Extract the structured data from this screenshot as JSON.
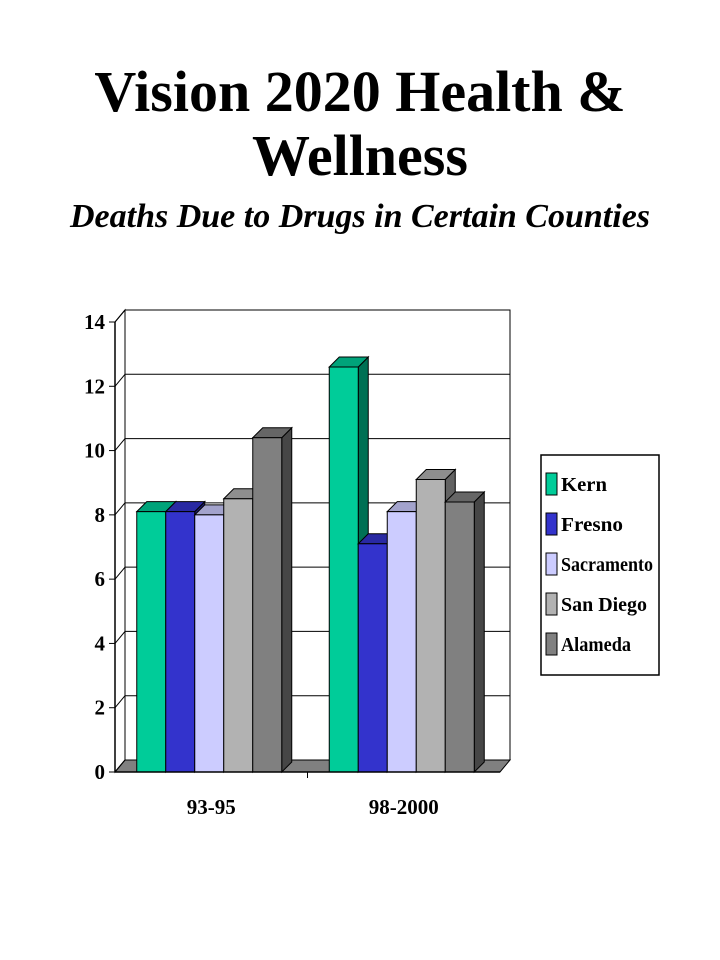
{
  "header": {
    "title": "Vision 2020 Health & Wellness",
    "subtitle": "Deaths Due to Drugs in Certain Counties"
  },
  "chart_data": {
    "type": "bar",
    "title": "Vision 2020 Health & Wellness",
    "subtitle": "Deaths Due to Drugs in Certain Counties",
    "xlabel": "",
    "ylabel": "",
    "categories": [
      "93-95",
      "98-2000"
    ],
    "ylim": [
      0,
      14
    ],
    "yticks": [
      0,
      2,
      4,
      6,
      8,
      10,
      12,
      14
    ],
    "grid": true,
    "legend_position": "right",
    "series": [
      {
        "name": "Kern",
        "values": [
          8.1,
          12.6
        ],
        "color": "#00cc99"
      },
      {
        "name": "Fresno",
        "values": [
          8.1,
          7.1
        ],
        "color": "#3333cc"
      },
      {
        "name": "Sacramento",
        "values": [
          8.0,
          8.1
        ],
        "color": "#ccccff"
      },
      {
        "name": "San Diego",
        "values": [
          8.5,
          9.1
        ],
        "color": "#b2b2b2"
      },
      {
        "name": "Alameda",
        "values": [
          10.4,
          8.4
        ],
        "color": "#808080"
      }
    ]
  }
}
